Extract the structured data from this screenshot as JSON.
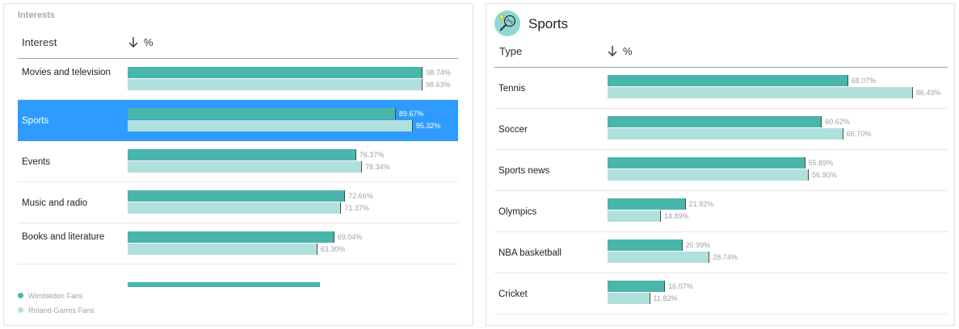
{
  "left": {
    "panel_title": "Interests",
    "col_label": "Interest",
    "col_value": "%",
    "rows": [
      {
        "label": "Movies and television",
        "v1": 98.74,
        "v2": 98.63,
        "t1": "98.74%",
        "t2": "98.63%",
        "selected": false
      },
      {
        "label": "Sports",
        "v1": 89.67,
        "v2": 95.32,
        "t1": "89.67%",
        "t2": "95.32%",
        "selected": true
      },
      {
        "label": "Events",
        "v1": 76.37,
        "v2": 78.34,
        "t1": "76.37%",
        "t2": "78.34%",
        "selected": false
      },
      {
        "label": "Music and radio",
        "v1": 72.66,
        "v2": 71.37,
        "t1": "72.66%",
        "t2": "71.37%",
        "selected": false
      },
      {
        "label": "Books and literature",
        "v1": 69.04,
        "v2": 63.3,
        "t1": "69.04%",
        "t2": "63.30%",
        "selected": false
      }
    ],
    "partial_row": {
      "v1": 64.5
    }
  },
  "legend": [
    {
      "label": "Wimbledon Fans",
      "color": "#4ab5aa"
    },
    {
      "label": "Roland-Garros Fans",
      "color": "#b0e0dc"
    }
  ],
  "right": {
    "title": "Sports",
    "icon": "tennis-racket-icon",
    "col_label": "Type",
    "col_value": "%",
    "rows": [
      {
        "label": "Tennis",
        "v1": 68.07,
        "v2": 86.43,
        "t1": "68.07%",
        "t2": "86.43%"
      },
      {
        "label": "Soccer",
        "v1": 60.62,
        "v2": 66.7,
        "t1": "60.62%",
        "t2": "66.70%"
      },
      {
        "label": "Sports news",
        "v1": 55.89,
        "v2": 56.9,
        "t1": "55.89%",
        "t2": "56.90%"
      },
      {
        "label": "Olympics",
        "v1": 21.92,
        "v2": 14.89,
        "t1": "21.92%",
        "t2": "14.89%"
      },
      {
        "label": "NBA basketball",
        "v1": 20.99,
        "v2": 28.74,
        "t1": "20.99%",
        "t2": "28.74%"
      },
      {
        "label": "Cricket",
        "v1": 16.07,
        "v2": 11.82,
        "t1": "16.07%",
        "t2": "11.82%"
      }
    ]
  },
  "colors": {
    "series1": "#4ab5aa",
    "series2": "#b0e0dc",
    "selected": "#2f9bff"
  }
}
